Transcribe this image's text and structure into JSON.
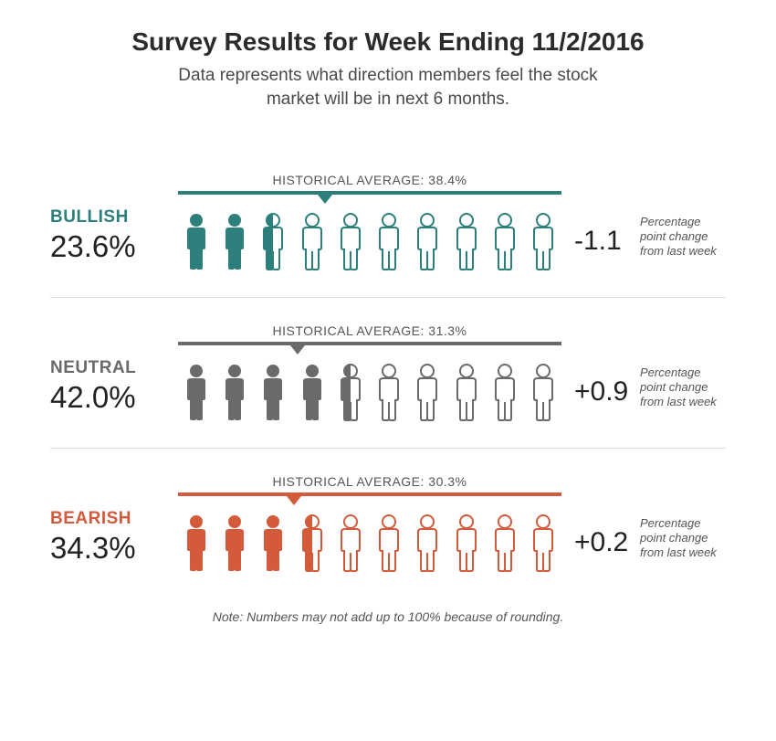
{
  "title": "Survey Results for Week Ending 11/2/2016",
  "subtitle": "Data represents what direction members feel the stock market will be in next 6 months.",
  "footnote": "Note: Numbers may not add up to 100% because of rounding.",
  "change_caption": "Percentage point change from last week",
  "historical_prefix": "HISTORICAL AVERAGE:",
  "icon_total": 10,
  "rows": [
    {
      "key": "bullish",
      "label": "BULLISH",
      "percent_text": "23.6%",
      "percent": 23.6,
      "historical_text": "38.4%",
      "historical_pct": 38.4,
      "change_text": "-1.1",
      "color": "#2c7f7b",
      "label_color": "#2c7f7b",
      "filled_icons": 2,
      "half_icon": true
    },
    {
      "key": "neutral",
      "label": "NEUTRAL",
      "percent_text": "42.0%",
      "percent": 42.0,
      "historical_text": "31.3%",
      "historical_pct": 31.3,
      "change_text": "+0.9",
      "color": "#6a6a6a",
      "label_color": "#6a6a6a",
      "filled_icons": 4,
      "half_icon": true
    },
    {
      "key": "bearish",
      "label": "BEARISH",
      "percent_text": "34.3%",
      "percent": 34.3,
      "historical_text": "30.3%",
      "historical_pct": 30.3,
      "change_text": "+0.2",
      "color": "#d35a3a",
      "label_color": "#d35a3a",
      "filled_icons": 3,
      "half_icon": true
    }
  ],
  "styling": {
    "background_color": "#ffffff",
    "title_fontsize": 28,
    "subtitle_fontsize": 19,
    "percent_fontsize": 33,
    "change_fontsize": 30,
    "divider_color": "#dcdcdc",
    "icon_outline_width": 2
  }
}
